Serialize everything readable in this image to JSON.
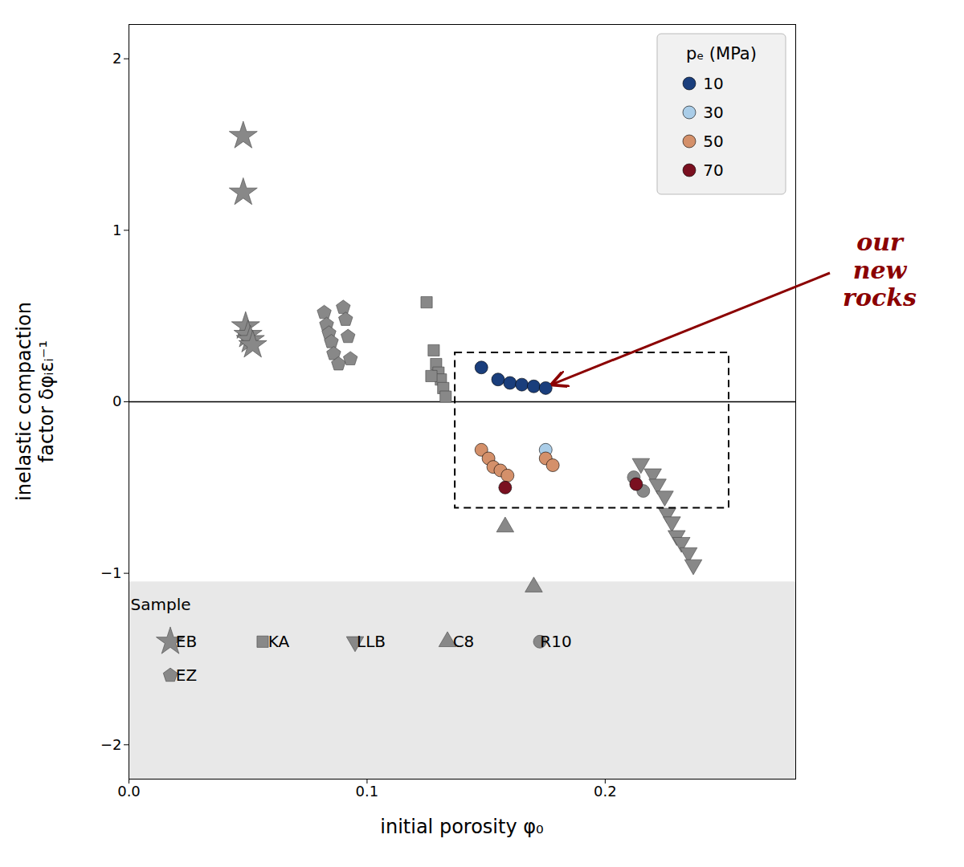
{
  "chart_data": {
    "type": "scatter",
    "xlabel": "initial porosity φ₀",
    "ylabel": "inelastic compaction\nfactor δφᵢεᵢ⁻¹",
    "xlim": [
      0.0,
      0.28
    ],
    "ylim": [
      -2.2,
      2.2
    ],
    "xticks": [
      {
        "value": 0.0,
        "label": "0.0"
      },
      0.1,
      0.2
    ],
    "yticks": [
      -2,
      -1,
      0,
      1,
      2
    ],
    "grid": false,
    "series": [
      {
        "name": "EB",
        "color": "#888888",
        "marker": "star",
        "values": [
          [
            0.048,
            1.55
          ],
          [
            0.048,
            1.22
          ],
          [
            0.049,
            0.44
          ],
          [
            0.05,
            0.39
          ],
          [
            0.051,
            0.36
          ],
          [
            0.052,
            0.33
          ]
        ]
      },
      {
        "name": "EZ",
        "color": "#888888",
        "marker": "pentagon",
        "values": [
          [
            0.082,
            0.52
          ],
          [
            0.083,
            0.45
          ],
          [
            0.084,
            0.4
          ],
          [
            0.085,
            0.35
          ],
          [
            0.086,
            0.28
          ],
          [
            0.088,
            0.22
          ],
          [
            0.09,
            0.55
          ],
          [
            0.091,
            0.48
          ],
          [
            0.092,
            0.38
          ],
          [
            0.093,
            0.25
          ]
        ]
      },
      {
        "name": "KA",
        "color": "#888888",
        "marker": "square",
        "values": [
          [
            0.125,
            0.58
          ],
          [
            0.128,
            0.3
          ],
          [
            0.129,
            0.22
          ],
          [
            0.13,
            0.17
          ],
          [
            0.131,
            0.13
          ],
          [
            0.132,
            0.08
          ],
          [
            0.133,
            0.03
          ],
          [
            0.127,
            0.15
          ]
        ]
      },
      {
        "name": "LLB",
        "color": "#888888",
        "marker": "triangle-down",
        "values": [
          [
            0.215,
            -0.36
          ],
          [
            0.22,
            -0.42
          ],
          [
            0.222,
            -0.48
          ],
          [
            0.225,
            -0.55
          ],
          [
            0.226,
            -0.65
          ],
          [
            0.228,
            -0.7
          ],
          [
            0.23,
            -0.78
          ],
          [
            0.232,
            -0.82
          ],
          [
            0.235,
            -0.88
          ],
          [
            0.237,
            -0.95
          ]
        ]
      },
      {
        "name": "C8",
        "color": "#888888",
        "marker": "triangle-up",
        "values": [
          [
            0.158,
            -0.73
          ],
          [
            0.17,
            -1.08
          ]
        ]
      },
      {
        "name": "R10",
        "color": "#888888",
        "marker": "circle",
        "values": [
          [
            0.212,
            -0.44
          ],
          [
            0.216,
            -0.52
          ]
        ]
      },
      {
        "name": "10",
        "color": "#1a3e7c",
        "marker": "circle",
        "values": [
          [
            0.148,
            0.2
          ],
          [
            0.155,
            0.13
          ],
          [
            0.16,
            0.11
          ],
          [
            0.165,
            0.1
          ],
          [
            0.17,
            0.09
          ],
          [
            0.175,
            0.08
          ]
        ]
      },
      {
        "name": "30",
        "color": "#aacde8",
        "marker": "circle",
        "values": [
          [
            0.175,
            -0.28
          ]
        ]
      },
      {
        "name": "50",
        "color": "#d4906a",
        "marker": "circle",
        "values": [
          [
            0.148,
            -0.28
          ],
          [
            0.151,
            -0.33
          ],
          [
            0.153,
            -0.38
          ],
          [
            0.156,
            -0.4
          ],
          [
            0.159,
            -0.43
          ],
          [
            0.175,
            -0.33
          ],
          [
            0.178,
            -0.37
          ]
        ]
      },
      {
        "name": "70",
        "color": "#7a1020",
        "marker": "circle",
        "values": [
          [
            0.158,
            -0.5
          ],
          [
            0.213,
            -0.48
          ]
        ]
      }
    ],
    "legends": [
      {
        "title": "pₑ (MPa)",
        "legend": "upper right",
        "entries": [
          "10",
          "30",
          "50",
          "70"
        ]
      },
      {
        "title": "Sample",
        "legend": "lower left",
        "entries": [
          "EB",
          "KA",
          "LLB",
          "C8",
          "R10",
          "EZ"
        ]
      }
    ],
    "shaded_region": {
      "y1": -2.2,
      "y2": -1.05
    },
    "dashed_box": {
      "x1": 0.137,
      "y1": -0.62,
      "x2": 0.252,
      "y2": 0.285
    },
    "reference_line": {
      "y": 0
    },
    "annotations": [
      {
        "text": "our\nnew\nrocks",
        "x": 0.178,
        "y": 0.1,
        "color": "darkred"
      }
    ]
  }
}
